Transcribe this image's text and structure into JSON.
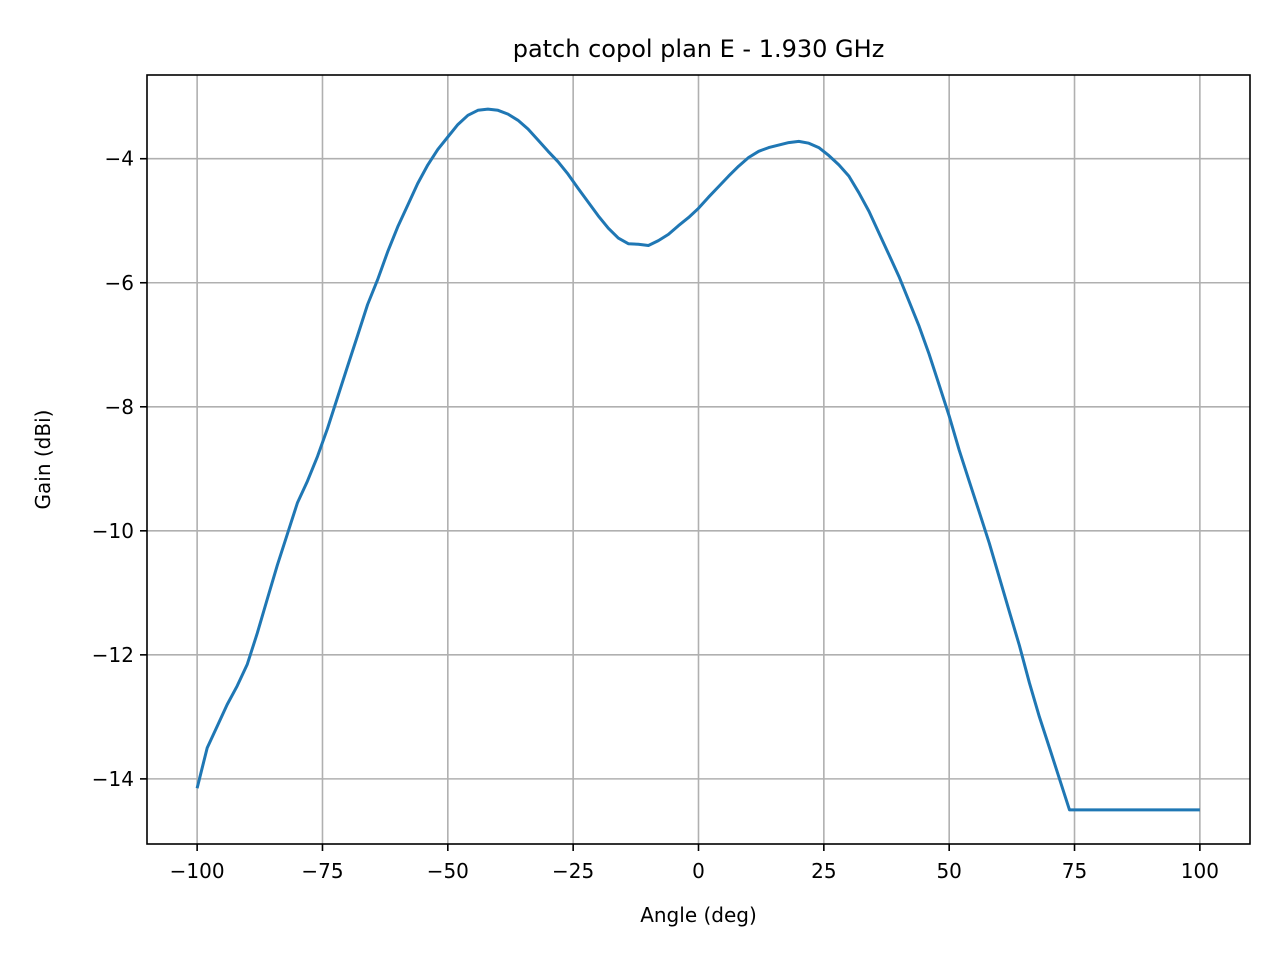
{
  "chart_data": {
    "type": "line",
    "title": "patch copol plan E - 1.930 GHz",
    "xlabel": "Angle (deg)",
    "ylabel": "Gain (dBi)",
    "xlim": [
      -110,
      110
    ],
    "ylim": [
      -15.05,
      -2.65
    ],
    "grid": true,
    "xticks": [
      -100,
      -75,
      -50,
      -25,
      0,
      25,
      50,
      75,
      100
    ],
    "xtick_labels": [
      "−100",
      "−75",
      "−50",
      "−25",
      "0",
      "25",
      "50",
      "75",
      "100"
    ],
    "yticks": [
      -14,
      -12,
      -10,
      -8,
      -6,
      -4
    ],
    "ytick_labels": [
      "−14",
      "−12",
      "−10",
      "−8",
      "−6",
      "−4"
    ],
    "series": [
      {
        "color": "#1f77b4",
        "x": [
          -100,
          -98,
          -96,
          -94,
          -92,
          -90,
          -88,
          -86,
          -84,
          -82,
          -80,
          -78,
          -76,
          -74,
          -72,
          -70,
          -68,
          -66,
          -64,
          -62,
          -60,
          -58,
          -56,
          -54,
          -52,
          -50,
          -48,
          -46,
          -44,
          -42,
          -40,
          -38,
          -36,
          -34,
          -32,
          -30,
          -28,
          -26,
          -24,
          -22,
          -20,
          -18,
          -16,
          -14,
          -12,
          -10,
          -8,
          -6,
          -4,
          -2,
          0,
          2,
          4,
          6,
          8,
          10,
          12,
          14,
          16,
          18,
          20,
          22,
          24,
          26,
          28,
          30,
          32,
          34,
          36,
          38,
          40,
          42,
          44,
          46,
          48,
          50,
          52,
          54,
          56,
          58,
          60,
          62,
          64,
          66,
          68,
          70,
          72,
          74,
          76,
          78,
          80,
          82,
          84,
          86,
          88,
          90,
          92,
          94,
          96,
          98,
          100
        ],
        "y": [
          -14.15,
          -13.5,
          -13.15,
          -12.8,
          -12.5,
          -12.15,
          -11.65,
          -11.1,
          -10.55,
          -10.05,
          -9.55,
          -9.2,
          -8.8,
          -8.35,
          -7.85,
          -7.35,
          -6.85,
          -6.35,
          -5.95,
          -5.5,
          -5.1,
          -4.75,
          -4.4,
          -4.1,
          -3.85,
          -3.65,
          -3.45,
          -3.3,
          -3.22,
          -3.2,
          -3.22,
          -3.28,
          -3.38,
          -3.52,
          -3.7,
          -3.88,
          -4.05,
          -4.25,
          -4.48,
          -4.7,
          -4.92,
          -5.12,
          -5.28,
          -5.37,
          -5.38,
          -5.4,
          -5.32,
          -5.22,
          -5.08,
          -4.95,
          -4.8,
          -4.62,
          -4.45,
          -4.28,
          -4.12,
          -3.98,
          -3.88,
          -3.82,
          -3.78,
          -3.74,
          -3.72,
          -3.75,
          -3.82,
          -3.95,
          -4.1,
          -4.28,
          -4.55,
          -4.85,
          -5.2,
          -5.55,
          -5.9,
          -6.3,
          -6.7,
          -7.15,
          -7.65,
          -8.15,
          -8.7,
          -9.2,
          -9.7,
          -10.2,
          -10.75,
          -11.3,
          -11.85,
          -12.45,
          -13.0,
          -13.5,
          -14.0,
          -14.5,
          -14.5,
          -14.5,
          -14.5,
          -14.5,
          -14.5,
          -14.5,
          -14.5,
          -14.5,
          -14.5,
          -14.5,
          -14.5,
          -14.5,
          -14.5
        ]
      }
    ]
  }
}
